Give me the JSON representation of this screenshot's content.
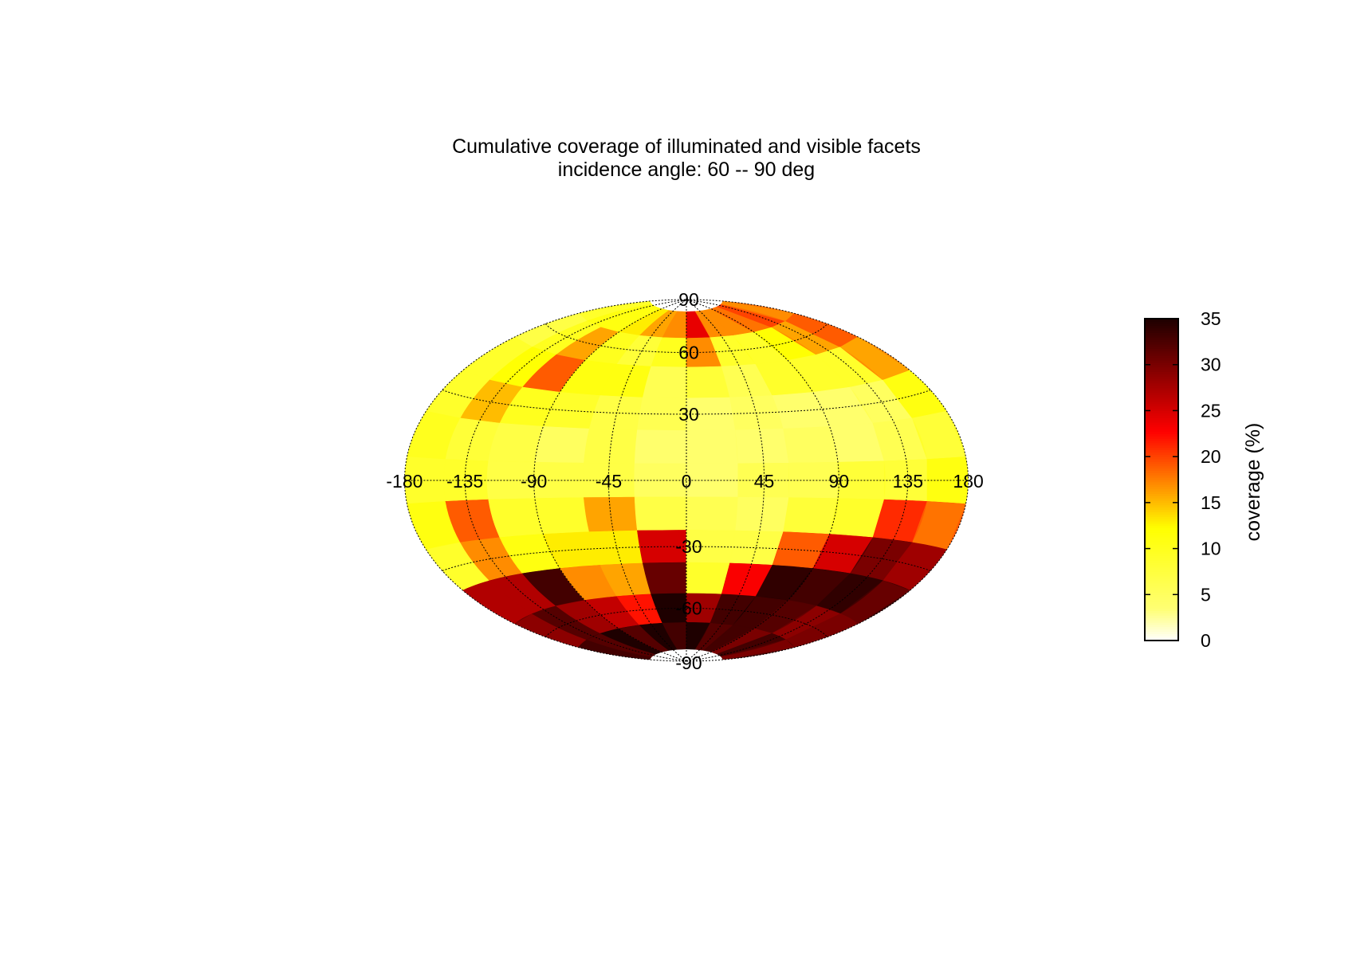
{
  "chart_data": {
    "type": "heatmap",
    "projection": "hammer-aitoff",
    "title": "Cumulative coverage of illuminated and visible facets",
    "subtitle": "incidence angle: 60 -- 90 deg",
    "xlim": [
      -180,
      180
    ],
    "ylim": [
      -90,
      90
    ],
    "lon_ticks": [
      "-180",
      "-135",
      "-90",
      "-45",
      "0",
      "45",
      "90",
      "135",
      "180"
    ],
    "lat_ticks": [
      "90",
      "60",
      "30",
      "-30",
      "-60",
      "-90"
    ],
    "grid": true,
    "colorbar": {
      "label": "coverage (%)",
      "range": [
        0,
        35
      ],
      "ticks": [
        "0",
        "5",
        "10",
        "15",
        "20",
        "25",
        "30",
        "35"
      ],
      "colormap": "hot",
      "placement": "right"
    },
    "lat_bands": [
      75,
      60,
      45,
      30,
      15,
      0,
      -15,
      -30,
      -45,
      -60,
      -75
    ],
    "lon_cells": [
      -165,
      -135,
      -105,
      -75,
      -45,
      -15,
      15,
      45,
      75,
      105,
      135,
      165
    ],
    "values": [
      [
        9,
        12,
        11,
        14,
        16,
        18,
        24,
        18,
        17,
        19,
        20,
        18
      ],
      [
        8,
        10,
        17,
        10,
        9,
        10,
        18,
        9,
        10,
        12,
        17,
        19
      ],
      [
        9,
        13,
        19,
        12,
        11,
        7,
        8,
        7,
        9,
        10,
        9,
        17
      ],
      [
        10,
        15,
        11,
        9,
        8,
        6,
        5,
        5,
        5,
        4,
        6,
        11
      ],
      [
        10,
        9,
        7,
        6,
        7,
        5,
        4,
        5,
        5,
        5,
        6,
        9
      ],
      [
        10,
        9,
        8,
        7,
        8,
        5,
        5,
        6,
        7,
        8,
        9,
        11
      ],
      [
        11,
        20,
        9,
        10,
        16,
        8,
        6,
        6,
        8,
        10,
        21,
        19
      ],
      [
        10,
        17,
        12,
        13,
        14,
        25,
        8,
        7,
        20,
        25,
        32,
        28
      ],
      [
        27,
        29,
        33,
        18,
        16,
        33,
        9,
        25,
        34,
        35,
        34,
        33
      ],
      [
        31,
        32,
        30,
        26,
        24,
        35,
        30,
        33,
        35,
        32,
        31,
        30
      ],
      [
        33,
        34,
        35,
        34,
        35,
        35,
        35,
        34,
        33,
        32,
        33,
        32
      ]
    ]
  }
}
